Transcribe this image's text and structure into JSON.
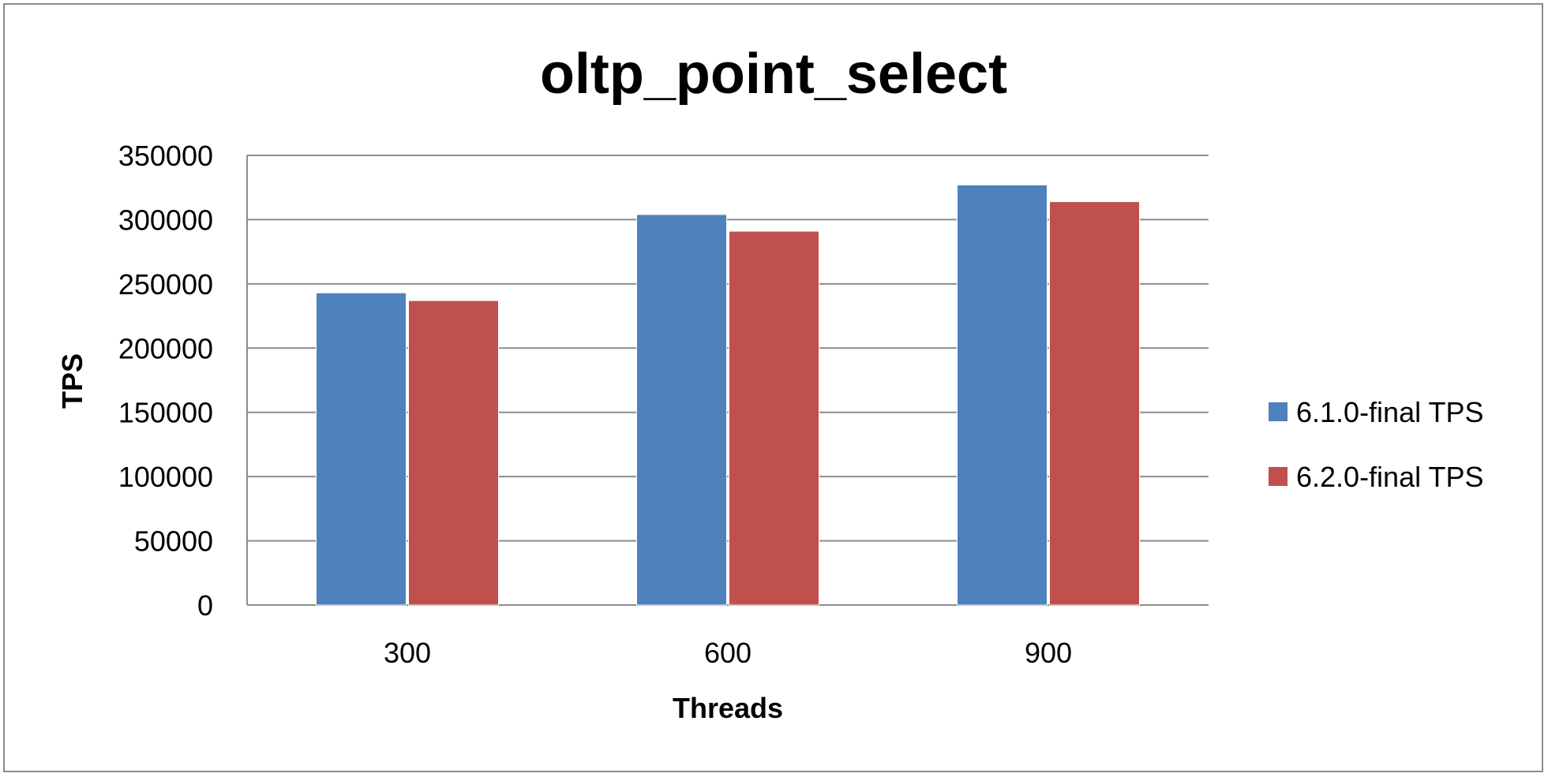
{
  "chart_data": {
    "type": "bar",
    "title": "oltp_point_select",
    "xlabel": "Threads",
    "ylabel": "TPS",
    "categories": [
      "300",
      "600",
      "900"
    ],
    "series": [
      {
        "name": "6.1.0-final TPS",
        "values": [
          243000,
          304000,
          327000
        ],
        "color": "#4f81bd"
      },
      {
        "name": "6.2.0-final TPS",
        "values": [
          237000,
          291000,
          314000
        ],
        "color": "#c0504d"
      }
    ],
    "ylim": [
      0,
      350000
    ],
    "yticks": [
      "0",
      "50000",
      "100000",
      "150000",
      "200000",
      "250000",
      "300000",
      "350000"
    ],
    "grid": true,
    "legend_position": "right"
  }
}
